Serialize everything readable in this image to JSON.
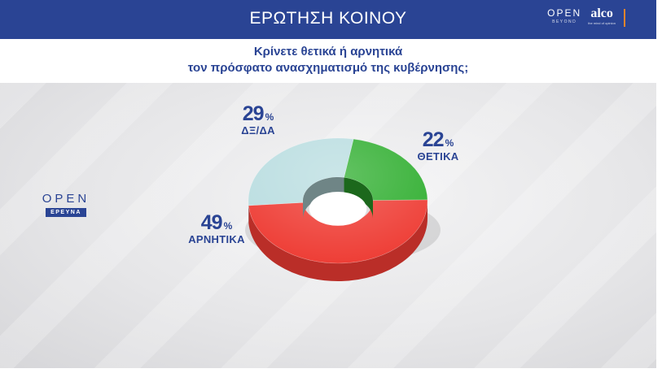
{
  "header": {
    "title": "ΕΡΩΤΗΣΗ ΚΟΙΝΟΥ",
    "brand_open": "OPEN",
    "brand_open_sub": "BEYOND",
    "brand_alco": "alco",
    "brand_alco_sub": "the mind of opinion"
  },
  "question": {
    "line1": "Κρίνετε θετικά ή αρνητικά",
    "line2": "τον πρόσφατο ανασχηματισμό της κυβέρνησης;"
  },
  "logo": {
    "word": "OPEN",
    "tag": "ΕΡΕΥΝΑ"
  },
  "chart_data": {
    "type": "pie",
    "style": "donut",
    "title": "Κρίνετε θετικά ή αρνητικά τον πρόσφατο ανασχηματισμό της κυβέρνησης;",
    "unit": "%",
    "slices": [
      {
        "label": "ΘΕΤΙΚΑ",
        "value": 22,
        "color": "#2fae2f"
      },
      {
        "label": "ΑΡΝΗΤΙΚΑ",
        "value": 49,
        "color": "#ee3b33"
      },
      {
        "label": "ΔΞ/ΔΑ",
        "value": 29,
        "color": "#b9dde0"
      }
    ],
    "labels": {
      "neg_value": "49",
      "neg_label": "ΑΡΝΗΤΙΚΑ",
      "dk_value": "29",
      "dk_label": "ΔΞ/ΔΑ",
      "pos_value": "22",
      "pos_label": "ΘΕΤΙΚΑ",
      "percent_sign": "%"
    }
  }
}
